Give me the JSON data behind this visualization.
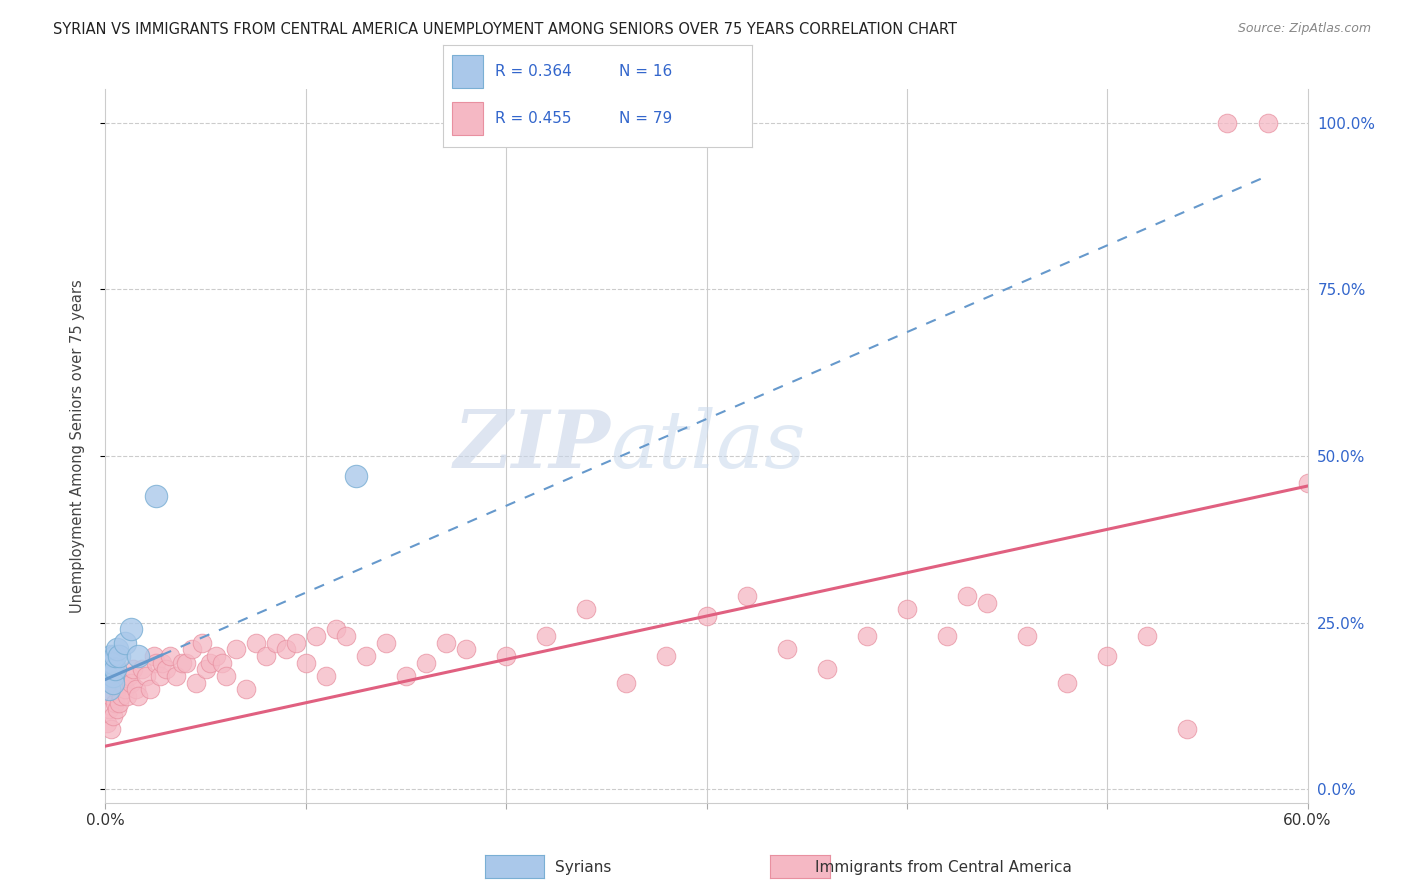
{
  "title": "SYRIAN VS IMMIGRANTS FROM CENTRAL AMERICA UNEMPLOYMENT AMONG SENIORS OVER 75 YEARS CORRELATION CHART",
  "source": "Source: ZipAtlas.com",
  "ylabel": "Unemployment Among Seniors over 75 years",
  "xlim": [
    0,
    0.6
  ],
  "ylim": [
    -0.02,
    1.05
  ],
  "ytick_positions": [
    0.0,
    0.25,
    0.5,
    0.75,
    1.0
  ],
  "ytick_labels_right": [
    "0.0%",
    "25.0%",
    "50.0%",
    "75.0%",
    "100.0%"
  ],
  "xtick_positions": [
    0.0,
    0.1,
    0.2,
    0.3,
    0.4,
    0.5,
    0.6
  ],
  "xticklabels": [
    "0.0%",
    "",
    "",
    "",
    "",
    "",
    "60.0%"
  ],
  "legend_R_syrians": "R = 0.364",
  "legend_N_syrians": "N = 16",
  "legend_R_central": "R = 0.455",
  "legend_N_central": "N = 79",
  "color_syrians": "#aac8ea",
  "color_syrians_edge": "#7aafd4",
  "color_syrians_line": "#6699cc",
  "color_central": "#f5b8c4",
  "color_central_edge": "#e890a0",
  "color_central_line": "#e06080",
  "color_text_blue": "#3366cc",
  "color_title": "#222222",
  "color_source": "#888888",
  "color_grid": "#cccccc",
  "color_ylabel": "#444444",
  "syrians_x": [
    0.001,
    0.002,
    0.003,
    0.003,
    0.004,
    0.004,
    0.004,
    0.005,
    0.005,
    0.006,
    0.007,
    0.01,
    0.013,
    0.016,
    0.025,
    0.125
  ],
  "syrians_y": [
    0.17,
    0.15,
    0.2,
    0.19,
    0.17,
    0.16,
    0.19,
    0.18,
    0.2,
    0.21,
    0.2,
    0.22,
    0.24,
    0.2,
    0.44,
    0.47
  ],
  "central_x": [
    0.001,
    0.002,
    0.003,
    0.003,
    0.004,
    0.005,
    0.005,
    0.006,
    0.006,
    0.007,
    0.008,
    0.009,
    0.01,
    0.011,
    0.012,
    0.013,
    0.014,
    0.015,
    0.016,
    0.018,
    0.02,
    0.022,
    0.024,
    0.025,
    0.027,
    0.028,
    0.03,
    0.032,
    0.035,
    0.038,
    0.04,
    0.043,
    0.045,
    0.048,
    0.05,
    0.052,
    0.055,
    0.058,
    0.06,
    0.065,
    0.07,
    0.075,
    0.08,
    0.085,
    0.09,
    0.095,
    0.1,
    0.105,
    0.11,
    0.115,
    0.12,
    0.13,
    0.14,
    0.15,
    0.16,
    0.17,
    0.18,
    0.2,
    0.22,
    0.24,
    0.26,
    0.28,
    0.3,
    0.32,
    0.34,
    0.36,
    0.38,
    0.4,
    0.42,
    0.44,
    0.46,
    0.48,
    0.5,
    0.52,
    0.54,
    0.56,
    0.58,
    0.6,
    0.43
  ],
  "central_y": [
    0.1,
    0.12,
    0.09,
    0.14,
    0.11,
    0.13,
    0.16,
    0.12,
    0.15,
    0.13,
    0.14,
    0.16,
    0.15,
    0.14,
    0.17,
    0.16,
    0.18,
    0.15,
    0.14,
    0.18,
    0.17,
    0.15,
    0.2,
    0.19,
    0.17,
    0.19,
    0.18,
    0.2,
    0.17,
    0.19,
    0.19,
    0.21,
    0.16,
    0.22,
    0.18,
    0.19,
    0.2,
    0.19,
    0.17,
    0.21,
    0.15,
    0.22,
    0.2,
    0.22,
    0.21,
    0.22,
    0.19,
    0.23,
    0.17,
    0.24,
    0.23,
    0.2,
    0.22,
    0.17,
    0.19,
    0.22,
    0.21,
    0.2,
    0.23,
    0.27,
    0.16,
    0.2,
    0.26,
    0.29,
    0.21,
    0.18,
    0.23,
    0.27,
    0.23,
    0.28,
    0.23,
    0.16,
    0.2,
    0.23,
    0.09,
    1.0,
    1.0,
    0.46,
    0.29
  ],
  "syrian_line_x0": 0.0,
  "syrian_line_y0": 0.165,
  "syrian_line_x1": 0.58,
  "syrian_line_y1": 0.92,
  "central_line_x0": 0.0,
  "central_line_y0": 0.065,
  "central_line_x1": 0.6,
  "central_line_y1": 0.455
}
